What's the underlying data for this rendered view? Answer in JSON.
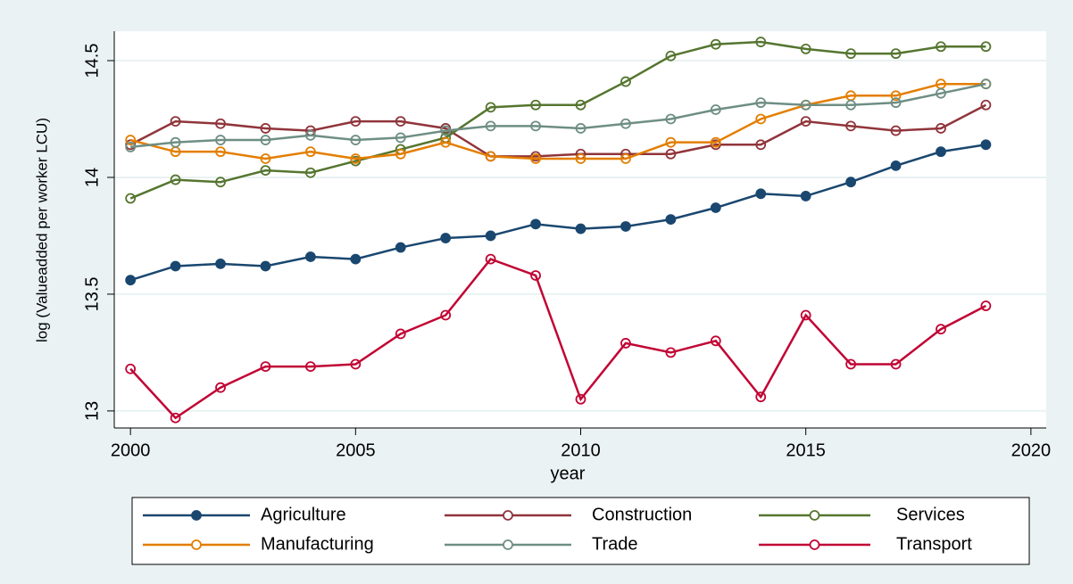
{
  "chart_data": {
    "type": "line",
    "x_label": "year",
    "y_label": "log (Valueadded per worker LCU)",
    "x": [
      2000,
      2001,
      2002,
      2003,
      2004,
      2005,
      2006,
      2007,
      2008,
      2009,
      2010,
      2011,
      2012,
      2013,
      2014,
      2015,
      2016,
      2017,
      2018,
      2019
    ],
    "xlim": [
      1999.64,
      2020.34
    ],
    "xticks": [
      2000,
      2005,
      2010,
      2015,
      2020
    ],
    "ylim": [
      12.927,
      14.626
    ],
    "yticks": [
      13,
      13.5,
      14,
      14.5
    ],
    "grid": true,
    "legend": "bottom",
    "series": [
      {
        "name": "Agriculture",
        "color": "#1a476f",
        "marker": "filled",
        "values": [
          13.56,
          13.62,
          13.63,
          13.62,
          13.66,
          13.65,
          13.7,
          13.74,
          13.75,
          13.8,
          13.78,
          13.79,
          13.82,
          13.87,
          13.93,
          13.92,
          13.98,
          14.05,
          14.11,
          14.14
        ]
      },
      {
        "name": "Construction",
        "color": "#90353b",
        "marker": "hollow",
        "values": [
          14.14,
          14.24,
          14.23,
          14.21,
          14.2,
          14.24,
          14.24,
          14.21,
          14.09,
          14.09,
          14.1,
          14.1,
          14.1,
          14.14,
          14.14,
          14.24,
          14.22,
          14.2,
          14.21,
          14.31
        ]
      },
      {
        "name": "Services",
        "color": "#55752f",
        "marker": "hollow",
        "values": [
          13.91,
          13.99,
          13.98,
          14.03,
          14.02,
          14.07,
          14.12,
          14.17,
          14.3,
          14.31,
          14.31,
          14.41,
          14.52,
          14.57,
          14.58,
          14.55,
          14.53,
          14.53,
          14.56,
          14.56
        ]
      },
      {
        "name": "Manufacturing",
        "color": "#e37e00",
        "marker": "hollow",
        "values": [
          14.16,
          14.11,
          14.11,
          14.08,
          14.11,
          14.08,
          14.1,
          14.15,
          14.09,
          14.08,
          14.08,
          14.08,
          14.15,
          14.15,
          14.25,
          14.31,
          14.35,
          14.35,
          14.4,
          14.4
        ]
      },
      {
        "name": "Trade",
        "color": "#6e8e84",
        "marker": "hollow",
        "values": [
          14.13,
          14.15,
          14.16,
          14.16,
          14.18,
          14.16,
          14.17,
          14.2,
          14.22,
          14.22,
          14.21,
          14.23,
          14.25,
          14.29,
          14.32,
          14.31,
          14.31,
          14.32,
          14.36,
          14.4
        ]
      },
      {
        "name": "Transport",
        "color": "#c10534",
        "marker": "hollow",
        "values": [
          13.18,
          12.97,
          13.1,
          13.19,
          13.19,
          13.2,
          13.33,
          13.41,
          13.65,
          13.58,
          13.05,
          13.29,
          13.25,
          13.3,
          13.06,
          13.41,
          13.2,
          13.2,
          13.35,
          13.45
        ]
      }
    ]
  }
}
